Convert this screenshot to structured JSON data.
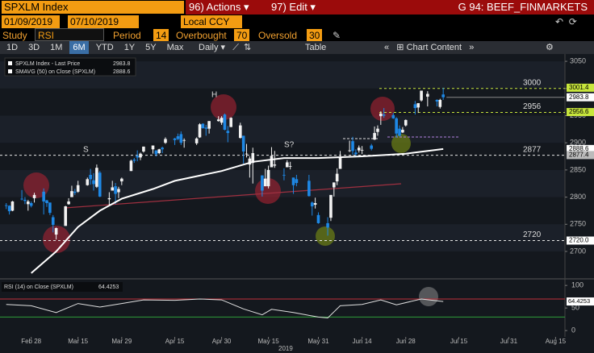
{
  "toolbar": {
    "ticker": "SPXLM Index",
    "actions": "96) Actions",
    "edit": "97) Edit",
    "workspace": "G 94: BEEF_FINMARKETS",
    "start_date": "01/09/2019",
    "end_date": "07/10/2019",
    "currency": "Local CCY",
    "study_label": "Study",
    "study": "RSI",
    "period_label": "Period",
    "overbought_label": "Overbought",
    "oversold_label": "Oversold",
    "ranges": [
      "1D",
      "3D",
      "1M",
      "6M",
      "YTD",
      "1Y",
      "5Y",
      "Max"
    ],
    "frequency": "Daily",
    "table": "Table",
    "chart_content": "Chart Content"
  },
  "chart_data": [
    {
      "type": "candlestick",
      "legend": [
        {
          "name": "SPXLM Index - Last Price",
          "value": 2983.8
        },
        {
          "name": "SMAVG (50)  on Close (SPXLM)",
          "value": 2888.6
        }
      ],
      "up_color": "#f2f2f2",
      "down_color": "#1e88e5",
      "xlim": [
        "2019-02-18",
        "2019-08-18"
      ],
      "xticks": [
        {
          "value": "2019-02-28",
          "label": "Feb 28"
        },
        {
          "value": "2019-03-15",
          "label": "Mar 15"
        },
        {
          "value": "2019-03-29",
          "label": "Mar 29"
        },
        {
          "value": "2019-04-15",
          "label": "Apr 15"
        },
        {
          "value": "2019-04-30",
          "label": "Apr 30"
        },
        {
          "value": "2019-05-15",
          "label": "May 15"
        },
        {
          "value": "2019-05-31",
          "label": "May 31"
        },
        {
          "value": "2019-06-14",
          "label": "Jun 14"
        },
        {
          "value": "2019-06-28",
          "label": "Jun 28"
        },
        {
          "value": "2019-07-15",
          "label": "Jul 15"
        },
        {
          "value": "2019-07-31",
          "label": "Jul 31"
        },
        {
          "value": "2019-08-15",
          "label": "Aug 15"
        }
      ],
      "year_label": "2019",
      "ylim": [
        2651,
        3062
      ],
      "yticks": [
        2700,
        2750,
        2800,
        2850,
        2900,
        2950,
        3000,
        3050
      ],
      "x": [
        "2019-02-20",
        "2019-02-21",
        "2019-02-22",
        "2019-02-25",
        "2019-02-26",
        "2019-02-27",
        "2019-02-28",
        "2019-03-01",
        "2019-03-04",
        "2019-03-05",
        "2019-03-06",
        "2019-03-07",
        "2019-03-08",
        "2019-03-11",
        "2019-03-12",
        "2019-03-13",
        "2019-03-14",
        "2019-03-15",
        "2019-03-18",
        "2019-03-19",
        "2019-03-20",
        "2019-03-21",
        "2019-03-22",
        "2019-03-25",
        "2019-03-26",
        "2019-03-27",
        "2019-03-28",
        "2019-03-29",
        "2019-04-01",
        "2019-04-02",
        "2019-04-03",
        "2019-04-04",
        "2019-04-05",
        "2019-04-08",
        "2019-04-09",
        "2019-04-10",
        "2019-04-11",
        "2019-04-12",
        "2019-04-15",
        "2019-04-16",
        "2019-04-17",
        "2019-04-18",
        "2019-04-22",
        "2019-04-23",
        "2019-04-24",
        "2019-04-25",
        "2019-04-26",
        "2019-04-29",
        "2019-04-30",
        "2019-05-01",
        "2019-05-02",
        "2019-05-03",
        "2019-05-06",
        "2019-05-07",
        "2019-05-08",
        "2019-05-09",
        "2019-05-10",
        "2019-05-13",
        "2019-05-14",
        "2019-05-15",
        "2019-05-16",
        "2019-05-17",
        "2019-05-20",
        "2019-05-21",
        "2019-05-22",
        "2019-05-23",
        "2019-05-24",
        "2019-05-28",
        "2019-05-29",
        "2019-05-30",
        "2019-05-31",
        "2019-06-03",
        "2019-06-04",
        "2019-06-05",
        "2019-06-06",
        "2019-06-07",
        "2019-06-10",
        "2019-06-11",
        "2019-06-12",
        "2019-06-13",
        "2019-06-14",
        "2019-06-17",
        "2019-06-18",
        "2019-06-19",
        "2019-06-20",
        "2019-06-21",
        "2019-06-24",
        "2019-06-25",
        "2019-06-26",
        "2019-06-27",
        "2019-06-28",
        "2019-07-01",
        "2019-07-02",
        "2019-07-03",
        "2019-07-05",
        "2019-07-08",
        "2019-07-09",
        "2019-07-10"
      ],
      "ohlc": [
        [
          2785,
          2789,
          2778,
          2784
        ],
        [
          2784,
          2785,
          2768,
          2774
        ],
        [
          2775,
          2793,
          2774,
          2792
        ],
        [
          2797,
          2813,
          2794,
          2796
        ],
        [
          2795,
          2800,
          2787,
          2793
        ],
        [
          2787,
          2795,
          2775,
          2792
        ],
        [
          2789,
          2792,
          2781,
          2784
        ],
        [
          2798,
          2808,
          2790,
          2804
        ],
        [
          2810,
          2816,
          2768,
          2792
        ],
        [
          2794,
          2795,
          2782,
          2789
        ],
        [
          2790,
          2790,
          2767,
          2771
        ],
        [
          2763,
          2767,
          2735,
          2749
        ],
        [
          2731,
          2744,
          2722,
          2743
        ],
        [
          2747,
          2784,
          2747,
          2783
        ],
        [
          2787,
          2798,
          2786,
          2792
        ],
        [
          2800,
          2821,
          2800,
          2811
        ],
        [
          2810,
          2815,
          2804,
          2808
        ],
        [
          2810,
          2830,
          2808,
          2822
        ],
        [
          2822,
          2836,
          2821,
          2833
        ],
        [
          2841,
          2852,
          2823,
          2833
        ],
        [
          2831,
          2844,
          2812,
          2824
        ],
        [
          2819,
          2860,
          2817,
          2854
        ],
        [
          2845,
          2848,
          2800,
          2801
        ],
        [
          2796,
          2809,
          2786,
          2798
        ],
        [
          2812,
          2830,
          2812,
          2818
        ],
        [
          2820,
          2826,
          2787,
          2806
        ],
        [
          2809,
          2819,
          2798,
          2815
        ],
        [
          2829,
          2836,
          2822,
          2834
        ],
        [
          2848,
          2869,
          2848,
          2867
        ],
        [
          2869,
          2872,
          2863,
          2867
        ],
        [
          2876,
          2886,
          2866,
          2873
        ],
        [
          2873,
          2882,
          2868,
          2880
        ],
        [
          2884,
          2893,
          2882,
          2893
        ],
        [
          2888,
          2895,
          2880,
          2895
        ],
        [
          2886,
          2886,
          2875,
          2879
        ],
        [
          2881,
          2889,
          2879,
          2888
        ],
        [
          2891,
          2893,
          2881,
          2888
        ],
        [
          2900,
          2910,
          2898,
          2907
        ],
        [
          2908,
          2909,
          2896,
          2905
        ],
        [
          2912,
          2917,
          2905,
          2907
        ],
        [
          2916,
          2921,
          2896,
          2900
        ],
        [
          2904,
          2908,
          2891,
          2905
        ],
        [
          2899,
          2910,
          2896,
          2908
        ],
        [
          2910,
          2936,
          2909,
          2934
        ],
        [
          2935,
          2936,
          2926,
          2927
        ],
        [
          2928,
          2933,
          2913,
          2926
        ],
        [
          2926,
          2940,
          2917,
          2940
        ],
        [
          2940,
          2949,
          2939,
          2943
        ],
        [
          2937,
          2949,
          2933,
          2946
        ],
        [
          2952,
          2954,
          2923,
          2924
        ],
        [
          2922,
          2931,
          2901,
          2918
        ],
        [
          2929,
          2947,
          2929,
          2946
        ],
        [
          2909,
          2937,
          2908,
          2932
        ],
        [
          2913,
          2913,
          2862,
          2884
        ],
        [
          2880,
          2898,
          2873,
          2880
        ],
        [
          2860,
          2875,
          2836,
          2871
        ],
        [
          2863,
          2891,
          2825,
          2881
        ],
        [
          2840,
          2840,
          2801,
          2812
        ],
        [
          2820,
          2852,
          2820,
          2834
        ],
        [
          2820,
          2858,
          2816,
          2850
        ],
        [
          2855,
          2892,
          2855,
          2876
        ],
        [
          2858,
          2885,
          2854,
          2860
        ],
        [
          2841,
          2853,
          2831,
          2840
        ],
        [
          2855,
          2868,
          2855,
          2864
        ],
        [
          2856,
          2865,
          2851,
          2857
        ],
        [
          2836,
          2836,
          2806,
          2822
        ],
        [
          2833,
          2841,
          2820,
          2826
        ],
        [
          2830,
          2841,
          2801,
          2802
        ],
        [
          2790,
          2792,
          2766,
          2783
        ],
        [
          2786,
          2799,
          2779,
          2789
        ],
        [
          2767,
          2772,
          2751,
          2752
        ],
        [
          2752,
          2763,
          2729,
          2744
        ],
        [
          2762,
          2804,
          2756,
          2804
        ],
        [
          2818,
          2827,
          2801,
          2827
        ],
        [
          2829,
          2853,
          2822,
          2843
        ],
        [
          2852,
          2885,
          2852,
          2873
        ],
        [
          2886,
          2904,
          2883,
          2886
        ],
        [
          2903,
          2911,
          2878,
          2885
        ],
        [
          2882,
          2888,
          2874,
          2879
        ],
        [
          2886,
          2895,
          2882,
          2891
        ],
        [
          2886,
          2894,
          2879,
          2887
        ],
        [
          2895,
          2898,
          2886,
          2889
        ],
        [
          2906,
          2930,
          2905,
          2918
        ],
        [
          2920,
          2932,
          2913,
          2926
        ],
        [
          2949,
          2958,
          2933,
          2954
        ],
        [
          2952,
          2964,
          2946,
          2950
        ],
        [
          2951,
          2955,
          2944,
          2945
        ],
        [
          2945,
          2947,
          2910,
          2917
        ],
        [
          2926,
          2932,
          2912,
          2913
        ],
        [
          2919,
          2929,
          2918,
          2924
        ],
        [
          2932,
          2943,
          2930,
          2942
        ],
        [
          2971,
          2977,
          2952,
          2964
        ],
        [
          2965,
          2973,
          2955,
          2973
        ],
        [
          2978,
          2996,
          2976,
          2996
        ],
        [
          2985,
          2995,
          2967,
          2990
        ],
        [
          2979,
          2980,
          2967,
          2976
        ],
        [
          2966,
          2981,
          2963,
          2979
        ],
        [
          2989,
          3001.4,
          2979,
          2983.8
        ]
      ],
      "sma": {
        "color": "#ffffff",
        "x": [
          "2019-02-28",
          "2019-03-08",
          "2019-03-15",
          "2019-03-22",
          "2019-03-29",
          "2019-04-08",
          "2019-04-15",
          "2019-04-30",
          "2019-05-10",
          "2019-05-20",
          "2019-05-31",
          "2019-06-14",
          "2019-06-28",
          "2019-07-10"
        ],
        "values": [
          2660,
          2700,
          2745,
          2775,
          2797,
          2815,
          2830,
          2848,
          2865,
          2872,
          2872,
          2875,
          2880,
          2888.6
        ]
      },
      "levels": [
        {
          "value": 3000,
          "color": "#c8e63c"
        },
        {
          "value": 2956,
          "color": "#c8e63c"
        },
        {
          "value": 2877,
          "color": "#e6e6e6"
        },
        {
          "value": 2720,
          "color": "#e6e6e6"
        }
      ],
      "price_tags": [
        {
          "value": 3001.4,
          "color": "#c8e63c"
        },
        {
          "value": 2983.8,
          "color": "#ffffff"
        },
        {
          "value": 2956.6,
          "color": "#c8e63c"
        },
        {
          "value": 2888.6,
          "color": "#ffffff"
        },
        {
          "value": 2877.4,
          "color": "#bbbbbb"
        },
        {
          "value": 2720,
          "label": "2720.0",
          "color": "#ffffff"
        }
      ],
      "annotations": [
        "H",
        "S",
        "S?"
      ]
    },
    {
      "type": "line",
      "name": "RSI (14)  on Close (SPXLM)",
      "period": 14,
      "overbought": 70,
      "oversold": 30,
      "last_value": 64.4253,
      "color": "#e0e0e0",
      "xlim": [
        "2019-02-18",
        "2019-08-18"
      ],
      "ylim": [
        -14,
        111
      ],
      "yticks": [
        0,
        50,
        100
      ],
      "x": [
        "2019-02-20",
        "2019-02-28",
        "2019-03-08",
        "2019-03-15",
        "2019-03-22",
        "2019-03-29",
        "2019-04-05",
        "2019-04-15",
        "2019-04-23",
        "2019-04-30",
        "2019-05-07",
        "2019-05-13",
        "2019-05-16",
        "2019-05-23",
        "2019-05-31",
        "2019-06-03",
        "2019-06-07",
        "2019-06-14",
        "2019-06-20",
        "2019-06-25",
        "2019-07-03",
        "2019-07-10"
      ],
      "values": [
        58,
        55,
        40,
        60,
        52,
        60,
        68,
        67,
        70,
        68,
        48,
        35,
        47,
        40,
        30,
        28,
        55,
        58,
        68,
        57,
        70,
        64.4253
      ]
    }
  ]
}
